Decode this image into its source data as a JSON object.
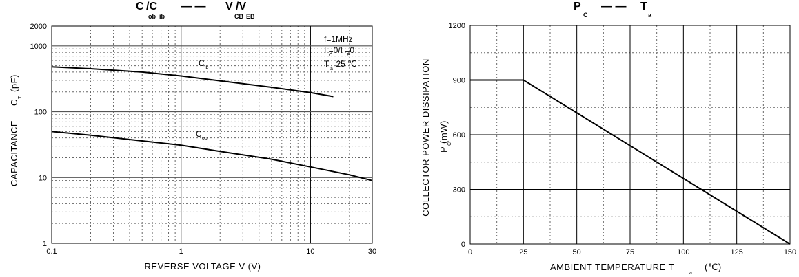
{
  "chart_data": [
    {
      "type": "line",
      "title": "C  /C         V  /V",
      "title_parts": {
        "a": "C",
        "b": "/C",
        "dash": "— —",
        "c": "V",
        "d": "/V"
      },
      "title_subs": {
        "a": "ob",
        "b": "ib",
        "c": "CB",
        "d": "EB"
      },
      "xlabel": "REVERSE VOLTAGE  V (V)",
      "ylabel": "CAPACITANCE",
      "ylabel_symbol": "C",
      "ylabel_symbol_sub": "T",
      "ylabel_unit": "(pF)",
      "x_scale": "log",
      "y_scale": "log",
      "xlim": [
        0.1,
        30
      ],
      "ylim": [
        1,
        2000
      ],
      "x_ticks": [
        {
          "v": 0.1,
          "label": "0.1"
        },
        {
          "v": 1,
          "label": "1"
        },
        {
          "v": 10,
          "label": "10"
        },
        {
          "v": 30,
          "label": "30"
        }
      ],
      "y_ticks": [
        {
          "v": 1,
          "label": "1"
        },
        {
          "v": 10,
          "label": "10"
        },
        {
          "v": 100,
          "label": "100"
        },
        {
          "v": 1000,
          "label": "1000"
        },
        {
          "v": 2000,
          "label": "2000"
        }
      ],
      "grid": true,
      "annotations": {
        "freq": "f=1MHz",
        "cond": "I =0/I =0",
        "cond_sub1": "C",
        "cond_sub2": "E",
        "temp": "T =25 ℃",
        "temp_sub": "a"
      },
      "series": [
        {
          "name": "C",
          "name_sub": "ib",
          "x": [
            0.1,
            0.2,
            0.5,
            1,
            2,
            5,
            10,
            15
          ],
          "y": [
            480,
            450,
            400,
            350,
            295,
            235,
            195,
            170
          ]
        },
        {
          "name": "C",
          "name_sub": "ob",
          "x": [
            0.1,
            0.2,
            0.5,
            1,
            2,
            5,
            10,
            20,
            30
          ],
          "y": [
            50,
            44,
            36,
            31,
            25,
            19,
            14.5,
            11,
            9
          ]
        }
      ]
    },
    {
      "type": "line",
      "title_parts": {
        "a": "P",
        "dash": "— —",
        "c": "T"
      },
      "title_subs": {
        "a": "C",
        "c": "a"
      },
      "xlabel": "AMBIENT TEMPERATURE  T",
      "xlabel_sub": "a",
      "xlabel_unit": "(℃)",
      "ylabel": "COLLECTOR POWER DISSIPATION",
      "ylabel2": "P  (mW)",
      "ylabel2_sub": "C",
      "xlim": [
        0,
        150
      ],
      "ylim": [
        0,
        1200
      ],
      "x_ticks": [
        {
          "v": 0,
          "label": "0"
        },
        {
          "v": 25,
          "label": "25"
        },
        {
          "v": 50,
          "label": "50"
        },
        {
          "v": 75,
          "label": "75"
        },
        {
          "v": 100,
          "label": "100"
        },
        {
          "v": 125,
          "label": "125"
        },
        {
          "v": 150,
          "label": "150"
        }
      ],
      "y_ticks": [
        {
          "v": 0,
          "label": "0"
        },
        {
          "v": 300,
          "label": "300"
        },
        {
          "v": 600,
          "label": "600"
        },
        {
          "v": 900,
          "label": "900"
        },
        {
          "v": 1200,
          "label": "1200"
        }
      ],
      "grid": true,
      "series": [
        {
          "x": [
            0,
            25,
            150
          ],
          "y": [
            900,
            900,
            0
          ]
        }
      ]
    }
  ]
}
